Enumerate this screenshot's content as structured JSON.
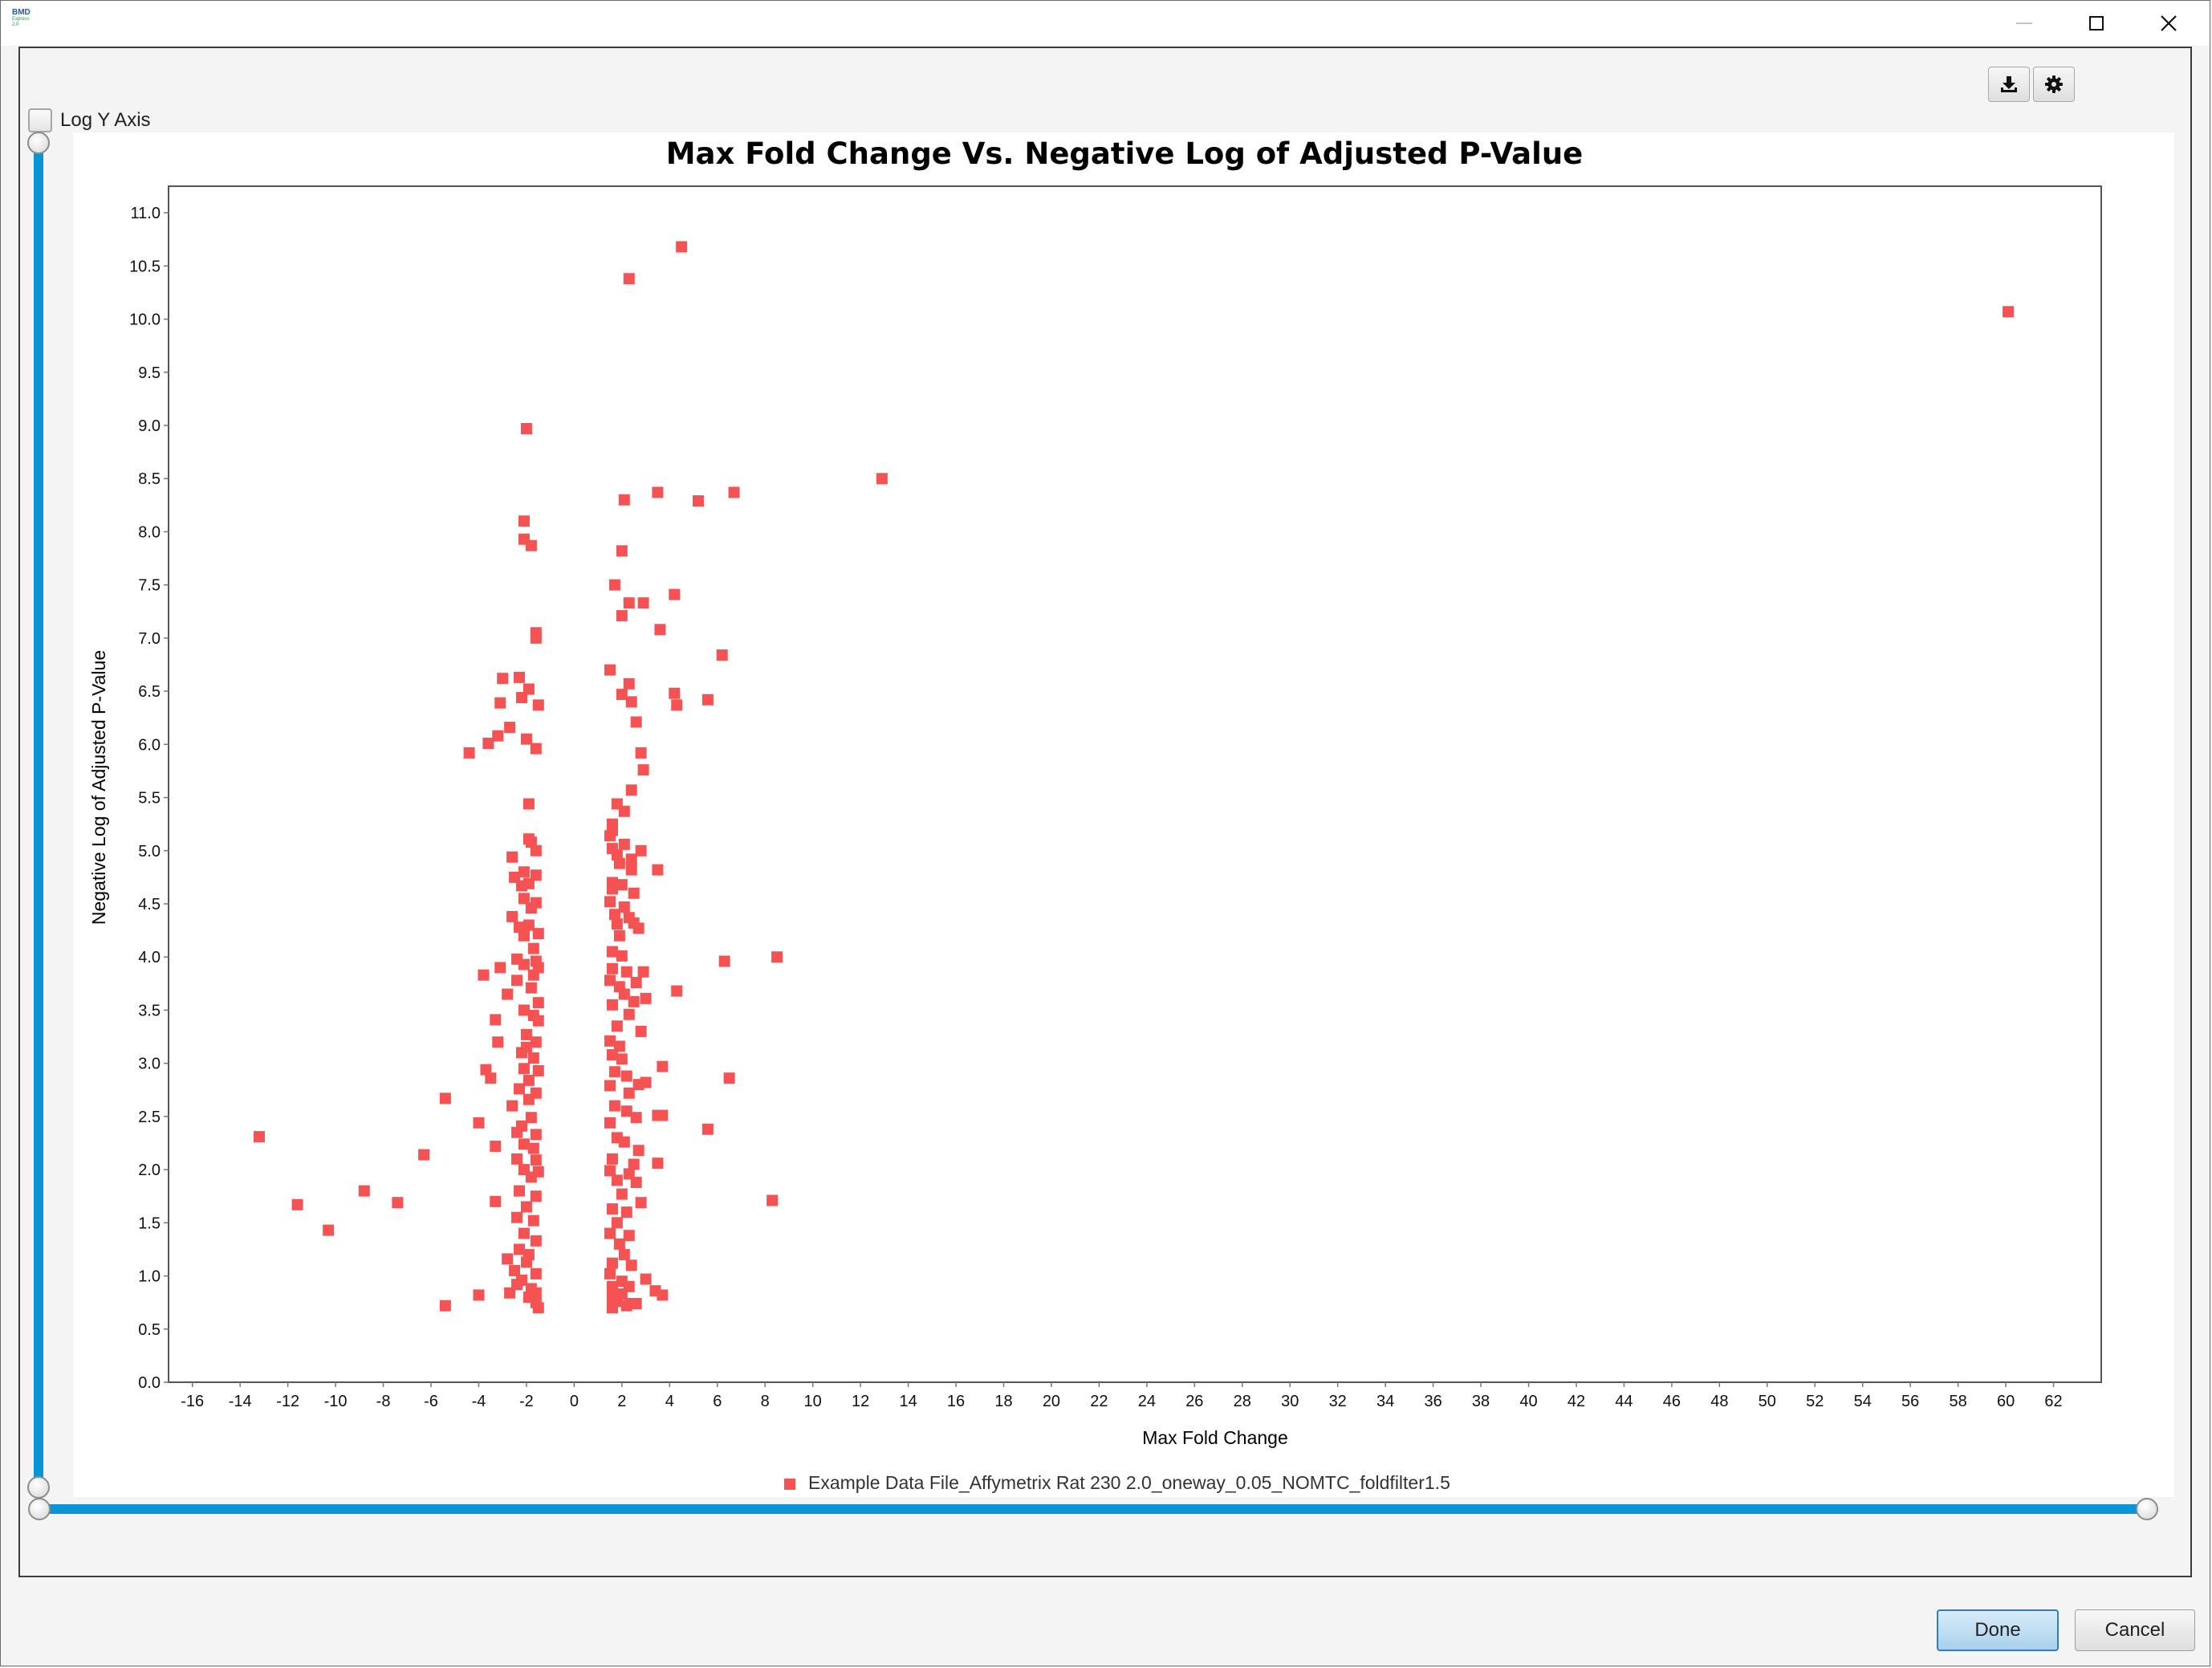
{
  "app": {
    "icon_text": "BMD",
    "icon_subtext": "Express",
    "icon_version": "2.0"
  },
  "window_controls": {
    "minimize": "minimize-icon",
    "maximize": "maximize-icon",
    "close": "close-icon"
  },
  "toolbar": {
    "download_icon": "download-icon",
    "settings_icon": "gear-icon"
  },
  "options": {
    "log_y_axis_label": "Log Y Axis",
    "log_y_axis_checked": false
  },
  "dialog_buttons": {
    "done_label": "Done",
    "cancel_label": "Cancel"
  },
  "colors": {
    "marker": "#f55353",
    "slider": "#0a94d6",
    "done_border": "#2f7fc4"
  },
  "chart_data": {
    "type": "scatter",
    "title": "Max Fold Change Vs. Negative Log of Adjusted P-Value",
    "xlabel": "Max Fold Change",
    "ylabel": "Negative Log of Adjusted P-Value",
    "xlim": [
      -17,
      64
    ],
    "ylim": [
      0,
      11.25
    ],
    "xticks": [
      -16,
      -14,
      -12,
      -10,
      -8,
      -6,
      -4,
      -2,
      0,
      2,
      4,
      6,
      8,
      10,
      12,
      14,
      16,
      18,
      20,
      22,
      24,
      26,
      28,
      30,
      32,
      34,
      36,
      38,
      40,
      42,
      44,
      46,
      48,
      50,
      52,
      54,
      56,
      58,
      60,
      62
    ],
    "yticks": [
      0.0,
      0.5,
      1.0,
      1.5,
      2.0,
      2.5,
      3.0,
      3.5,
      4.0,
      4.5,
      5.0,
      5.5,
      6.0,
      6.5,
      7.0,
      7.5,
      8.0,
      8.5,
      9.0,
      9.5,
      10.0,
      10.5,
      11.0
    ],
    "grid": false,
    "legend_position": "bottom",
    "series": [
      {
        "name": "Example Data File_Affymetrix Rat 230 2.0_oneway_0.05_NOMTC_foldfilter1.5",
        "points": [
          [
            4.5,
            10.68
          ],
          [
            2.3,
            10.38
          ],
          [
            60.1,
            10.07
          ],
          [
            12.9,
            8.5
          ],
          [
            -2.0,
            8.97
          ],
          [
            2.1,
            8.3
          ],
          [
            3.5,
            8.37
          ],
          [
            5.2,
            8.29
          ],
          [
            6.7,
            8.37
          ],
          [
            -2.1,
            8.1
          ],
          [
            -2.1,
            7.93
          ],
          [
            -1.8,
            7.87
          ],
          [
            2.0,
            7.82
          ],
          [
            1.7,
            7.5
          ],
          [
            2.3,
            7.33
          ],
          [
            2.9,
            7.33
          ],
          [
            4.2,
            7.41
          ],
          [
            2.0,
            7.21
          ],
          [
            3.6,
            7.08
          ],
          [
            -1.6,
            7.05
          ],
          [
            -1.6,
            7.0
          ],
          [
            6.2,
            6.84
          ],
          [
            1.5,
            6.7
          ],
          [
            2.3,
            6.57
          ],
          [
            -3.0,
            6.62
          ],
          [
            -2.3,
            6.63
          ],
          [
            -1.9,
            6.52
          ],
          [
            2.0,
            6.47
          ],
          [
            4.2,
            6.48
          ],
          [
            -3.1,
            6.39
          ],
          [
            -2.2,
            6.44
          ],
          [
            -1.5,
            6.37
          ],
          [
            2.4,
            6.4
          ],
          [
            4.3,
            6.37
          ],
          [
            5.6,
            6.42
          ],
          [
            2.6,
            6.21
          ],
          [
            -2.7,
            6.16
          ],
          [
            -3.2,
            6.08
          ],
          [
            -2.0,
            6.05
          ],
          [
            -3.6,
            6.01
          ],
          [
            -4.4,
            5.92
          ],
          [
            -1.6,
            5.96
          ],
          [
            2.8,
            5.92
          ],
          [
            2.9,
            5.76
          ],
          [
            2.4,
            5.57
          ],
          [
            -1.9,
            5.44
          ],
          [
            1.8,
            5.44
          ],
          [
            2.1,
            5.37
          ],
          [
            1.6,
            5.25
          ],
          [
            1.6,
            5.19
          ],
          [
            1.5,
            5.14
          ],
          [
            -1.9,
            5.11
          ],
          [
            -1.8,
            5.08
          ],
          [
            2.1,
            5.06
          ],
          [
            1.6,
            5.02
          ],
          [
            2.8,
            5.0
          ],
          [
            -1.6,
            5.0
          ],
          [
            -2.6,
            4.94
          ],
          [
            1.8,
            4.96
          ],
          [
            2.4,
            4.92
          ],
          [
            1.9,
            4.88
          ],
          [
            2.4,
            4.82
          ],
          [
            3.5,
            4.82
          ],
          [
            -2.1,
            4.8
          ],
          [
            -2.5,
            4.75
          ],
          [
            -1.6,
            4.77
          ],
          [
            -1.9,
            4.69
          ],
          [
            -2.2,
            4.67
          ],
          [
            1.6,
            4.7
          ],
          [
            2.0,
            4.68
          ],
          [
            1.6,
            4.64
          ],
          [
            2.5,
            4.6
          ],
          [
            -2.1,
            4.55
          ],
          [
            -1.6,
            4.51
          ],
          [
            1.5,
            4.52
          ],
          [
            2.1,
            4.47
          ],
          [
            -1.8,
            4.46
          ],
          [
            1.7,
            4.4
          ],
          [
            2.3,
            4.37
          ],
          [
            -2.6,
            4.38
          ],
          [
            -2.3,
            4.28
          ],
          [
            -1.9,
            4.3
          ],
          [
            1.8,
            4.31
          ],
          [
            2.5,
            4.32
          ],
          [
            2.7,
            4.27
          ],
          [
            -1.5,
            4.22
          ],
          [
            -2.1,
            4.2
          ],
          [
            1.9,
            4.2
          ],
          [
            -1.7,
            4.08
          ],
          [
            1.6,
            4.05
          ],
          [
            2.0,
            4.01
          ],
          [
            -2.4,
            3.98
          ],
          [
            -1.6,
            3.96
          ],
          [
            6.3,
            3.96
          ],
          [
            8.5,
            4.0
          ],
          [
            -2.1,
            3.93
          ],
          [
            -3.1,
            3.9
          ],
          [
            -1.5,
            3.9
          ],
          [
            1.6,
            3.89
          ],
          [
            2.2,
            3.86
          ],
          [
            2.9,
            3.86
          ],
          [
            -3.8,
            3.83
          ],
          [
            -1.7,
            3.83
          ],
          [
            -2.4,
            3.78
          ],
          [
            1.5,
            3.78
          ],
          [
            2.6,
            3.76
          ],
          [
            -1.8,
            3.71
          ],
          [
            1.9,
            3.72
          ],
          [
            4.3,
            3.68
          ],
          [
            -2.8,
            3.65
          ],
          [
            2.1,
            3.65
          ],
          [
            3.0,
            3.61
          ],
          [
            2.5,
            3.58
          ],
          [
            -1.5,
            3.57
          ],
          [
            1.6,
            3.55
          ],
          [
            -2.1,
            3.5
          ],
          [
            -1.7,
            3.45
          ],
          [
            2.3,
            3.46
          ],
          [
            -3.3,
            3.41
          ],
          [
            -1.5,
            3.4
          ],
          [
            1.8,
            3.35
          ],
          [
            2.8,
            3.3
          ],
          [
            -2.0,
            3.27
          ],
          [
            -3.2,
            3.2
          ],
          [
            -1.6,
            3.2
          ],
          [
            1.5,
            3.21
          ],
          [
            -2.0,
            3.15
          ],
          [
            1.9,
            3.16
          ],
          [
            -2.2,
            3.1
          ],
          [
            -1.7,
            3.05
          ],
          [
            1.6,
            3.08
          ],
          [
            2.0,
            3.04
          ],
          [
            3.7,
            2.97
          ],
          [
            -3.7,
            2.94
          ],
          [
            -2.1,
            2.95
          ],
          [
            -1.5,
            2.93
          ],
          [
            1.7,
            2.92
          ],
          [
            2.2,
            2.88
          ],
          [
            -3.5,
            2.86
          ],
          [
            -1.9,
            2.84
          ],
          [
            3.0,
            2.82
          ],
          [
            6.5,
            2.86
          ],
          [
            2.7,
            2.8
          ],
          [
            1.5,
            2.79
          ],
          [
            -2.3,
            2.76
          ],
          [
            -1.6,
            2.72
          ],
          [
            2.3,
            2.72
          ],
          [
            -1.9,
            2.66
          ],
          [
            -5.4,
            2.67
          ],
          [
            -2.6,
            2.6
          ],
          [
            1.7,
            2.6
          ],
          [
            2.2,
            2.55
          ],
          [
            3.5,
            2.51
          ],
          [
            2.6,
            2.49
          ],
          [
            3.7,
            2.51
          ],
          [
            -1.8,
            2.49
          ],
          [
            -4.0,
            2.44
          ],
          [
            -2.2,
            2.41
          ],
          [
            1.5,
            2.44
          ],
          [
            5.6,
            2.38
          ],
          [
            -2.4,
            2.35
          ],
          [
            -1.6,
            2.33
          ],
          [
            1.8,
            2.3
          ],
          [
            2.1,
            2.26
          ],
          [
            -13.2,
            2.31
          ],
          [
            -2.1,
            2.24
          ],
          [
            -3.3,
            2.22
          ],
          [
            -1.7,
            2.2
          ],
          [
            2.7,
            2.18
          ],
          [
            -6.3,
            2.14
          ],
          [
            -2.4,
            2.1
          ],
          [
            -1.6,
            2.09
          ],
          [
            1.6,
            2.1
          ],
          [
            2.5,
            2.05
          ],
          [
            3.5,
            2.06
          ],
          [
            -2.1,
            2.0
          ],
          [
            -1.5,
            1.98
          ],
          [
            1.5,
            1.99
          ],
          [
            2.3,
            1.96
          ],
          [
            -1.8,
            1.93
          ],
          [
            1.8,
            1.9
          ],
          [
            2.6,
            1.88
          ],
          [
            -8.8,
            1.8
          ],
          [
            -2.3,
            1.8
          ],
          [
            -1.6,
            1.75
          ],
          [
            2.0,
            1.77
          ],
          [
            -11.6,
            1.67
          ],
          [
            -7.4,
            1.69
          ],
          [
            -3.3,
            1.7
          ],
          [
            2.8,
            1.69
          ],
          [
            8.3,
            1.71
          ],
          [
            -2.0,
            1.65
          ],
          [
            1.6,
            1.63
          ],
          [
            2.2,
            1.6
          ],
          [
            -2.4,
            1.55
          ],
          [
            -1.7,
            1.52
          ],
          [
            1.8,
            1.5
          ],
          [
            -10.3,
            1.43
          ],
          [
            -2.1,
            1.4
          ],
          [
            1.5,
            1.4
          ],
          [
            2.3,
            1.38
          ],
          [
            -1.6,
            1.33
          ],
          [
            1.9,
            1.3
          ],
          [
            -2.3,
            1.25
          ],
          [
            -1.9,
            1.2
          ],
          [
            2.1,
            1.2
          ],
          [
            -2.8,
            1.16
          ],
          [
            -2.0,
            1.13
          ],
          [
            1.6,
            1.12
          ],
          [
            2.4,
            1.1
          ],
          [
            -2.5,
            1.05
          ],
          [
            -1.6,
            1.02
          ],
          [
            1.5,
            1.02
          ],
          [
            -2.2,
            0.96
          ],
          [
            2.0,
            0.95
          ],
          [
            3.0,
            0.97
          ],
          [
            -2.4,
            0.92
          ],
          [
            -1.8,
            0.88
          ],
          [
            1.6,
            0.9
          ],
          [
            2.3,
            0.9
          ],
          [
            3.4,
            0.86
          ],
          [
            -2.7,
            0.84
          ],
          [
            -1.6,
            0.84
          ],
          [
            2.0,
            0.83
          ],
          [
            -4.0,
            0.82
          ],
          [
            3.7,
            0.82
          ],
          [
            -1.9,
            0.8
          ],
          [
            1.6,
            0.8
          ],
          [
            -1.6,
            0.75
          ],
          [
            1.8,
            0.76
          ],
          [
            2.4,
            0.74
          ],
          [
            2.6,
            0.74
          ],
          [
            -5.4,
            0.72
          ],
          [
            -1.5,
            0.7
          ],
          [
            1.6,
            0.7
          ],
          [
            2.2,
            0.72
          ]
        ]
      }
    ]
  }
}
